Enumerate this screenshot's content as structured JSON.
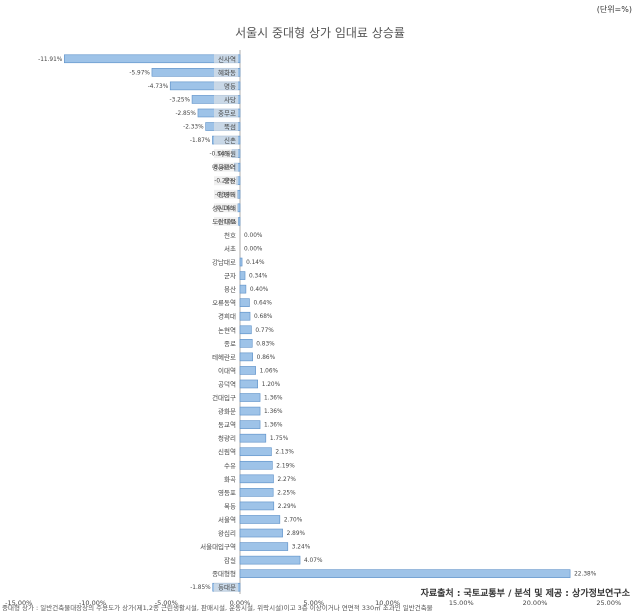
{
  "unit_note": "(단위=%)",
  "source_note": "자료출처 : 국토교통부 / 분석 및 제공 : 상가정보연구소",
  "footnote": "중대형 상가 : 일반건축물대장상의 주용도가 상가(제1,2종 근린생활시설, 판매시설, 운동시설, 위락시설)이고 3층 이상이거나 연면적 330㎡ 초과인 일반건축물",
  "chart_data": {
    "type": "bar",
    "orientation": "horizontal",
    "title": "서울시 중대형 상가 임대료 상승률",
    "xlabel": "",
    "ylabel": "",
    "xlim": [
      -15,
      25
    ],
    "xticks": [
      -15,
      -10,
      -5,
      0,
      5,
      10,
      15,
      20,
      25
    ],
    "xtick_labels": [
      "-15.00%",
      "-10.00%",
      "-5.00%",
      "0.00%",
      "5.00%",
      "10.00%",
      "15.00%",
      "20.00%",
      "25.00%"
    ],
    "grid": false,
    "legend": false,
    "bar_color": "#9ec3e8",
    "bar_edge_color": "#5b8fc7",
    "highlight_color": "#e6e6e6",
    "categories": [
      "신사역",
      "혜화동",
      "명동",
      "사당",
      "충무로",
      "뚝섬",
      "신촌",
      "이태원",
      "영등포역",
      "용산",
      "청량리",
      "성신여대",
      "도산대로",
      "천호",
      "서초",
      "강남대로",
      "군자",
      "용산",
      "오류동역",
      "경희대",
      "논현역",
      "종로",
      "테헤란로",
      "이대역",
      "공덕역",
      "건대입구",
      "광화문",
      "동교역",
      "청량리",
      "신림역",
      "수유",
      "화곡",
      "영등포",
      "목동",
      "서울역",
      "왕십리",
      "서울대입구역",
      "잠실",
      "종대형형",
      "동대문"
    ],
    "values": [
      -11.91,
      -5.97,
      -4.73,
      -3.25,
      -2.85,
      -2.33,
      -1.87,
      -0.54,
      -0.38,
      -0.22,
      -0.18,
      -0.16,
      -0.1,
      0.0,
      0.0,
      0.14,
      0.34,
      0.4,
      0.64,
      0.68,
      0.77,
      0.83,
      0.86,
      1.06,
      1.2,
      1.36,
      1.36,
      1.36,
      1.75,
      2.13,
      2.19,
      2.27,
      2.25,
      2.29,
      2.7,
      2.89,
      3.24,
      4.07,
      22.38,
      -1.85
    ],
    "value_labels": [
      "-11.91%",
      "-5.97%",
      "-4.73%",
      "-3.25%",
      "-2.85%",
      "-2.33%",
      "-1.87%",
      "-0.54%",
      "-0.38%",
      "-0.22%",
      "-0.18%",
      "-0.16%",
      "-0.10%",
      "0.00%",
      "0.00%",
      "0.14%",
      "0.34%",
      "0.40%",
      "0.64%",
      "0.68%",
      "0.77%",
      "0.83%",
      "0.86%",
      "1.06%",
      "1.20%",
      "1.36%",
      "1.36%",
      "1.36%",
      "1.75%",
      "2.13%",
      "2.19%",
      "2.27%",
      "2.25%",
      "2.29%",
      "2.70%",
      "2.89%",
      "3.24%",
      "4.07%",
      "22.38%",
      "-1.85%"
    ]
  }
}
